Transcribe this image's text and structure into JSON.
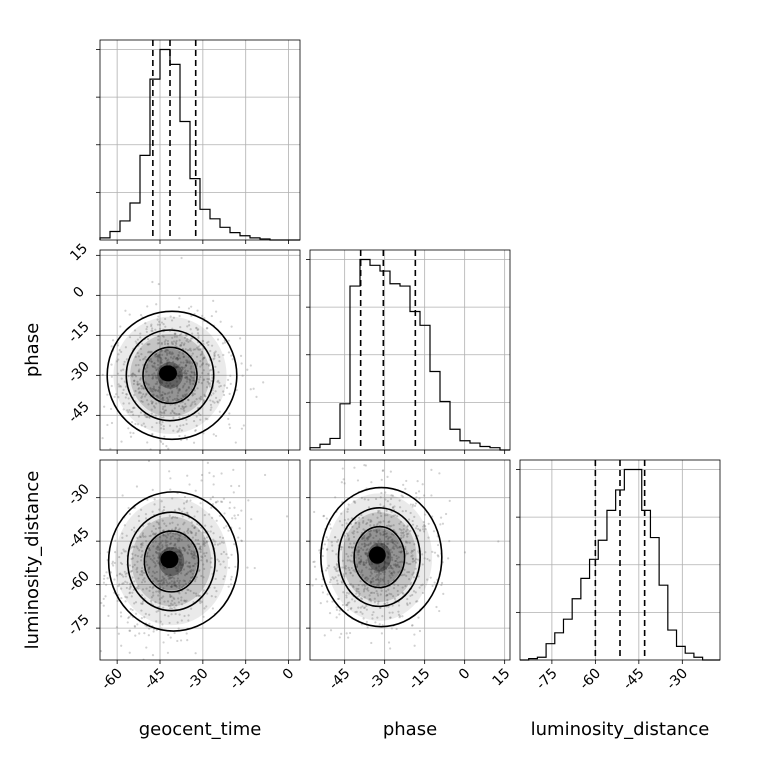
{
  "chart_data": {
    "type": "corner",
    "parameters": [
      "geocent_time",
      "phase",
      "luminosity_distance"
    ],
    "quantile_lines": {
      "geocent_time": [
        -47.5,
        -41.5,
        -32.5
      ],
      "phase": [
        -39.0,
        -30.5,
        -18.5
      ],
      "luminosity_distance": [
        -60.0,
        -51.5,
        -43.0
      ]
    },
    "histograms": [
      {
        "name": "geocent_time",
        "range": [
          -66,
          4
        ],
        "values": [
          2,
          8,
          18,
          35,
          80,
          152,
          180,
          166,
          112,
          58,
          29,
          20,
          12,
          7,
          4,
          2,
          1,
          0,
          0,
          0
        ],
        "xticks": [
          -60,
          -45,
          -30,
          -15,
          0
        ]
      },
      {
        "name": "phase",
        "range": [
          -58,
          17
        ],
        "values": [
          2,
          5,
          10,
          40,
          142,
          165,
          160,
          155,
          144,
          142,
          120,
          108,
          68,
          42,
          18,
          8,
          6,
          3,
          2,
          0
        ],
        "xticks": [
          -45,
          -30,
          -15,
          0,
          15
        ]
      },
      {
        "name": "luminosity_distance",
        "range": [
          -86,
          -17
        ],
        "values": [
          0,
          1,
          2,
          12,
          20,
          30,
          45,
          60,
          74,
          88,
          110,
          125,
          140,
          140,
          110,
          90,
          55,
          22,
          10,
          5,
          2,
          0,
          0
        ],
        "xticks": [
          -75,
          -60,
          -45,
          -30
        ]
      }
    ],
    "pairs": [
      {
        "x": "geocent_time",
        "y": "phase",
        "center": [
          -41.5,
          -30
        ],
        "yticks": [
          15,
          0,
          -15,
          -30,
          -45
        ]
      },
      {
        "x": "geocent_time",
        "y": "luminosity_distance",
        "center": [
          -41,
          -52
        ],
        "yticks": [
          -30,
          -45,
          -60,
          -75
        ]
      },
      {
        "x": "phase",
        "y": "luminosity_distance",
        "center": [
          -32,
          -50.5
        ],
        "yticks": []
      }
    ],
    "xlabels": [
      "geocent_time",
      "phase",
      "luminosity_distance"
    ],
    "ylabels": [
      "",
      "phase",
      "luminosity_distance"
    ],
    "grid": true
  }
}
